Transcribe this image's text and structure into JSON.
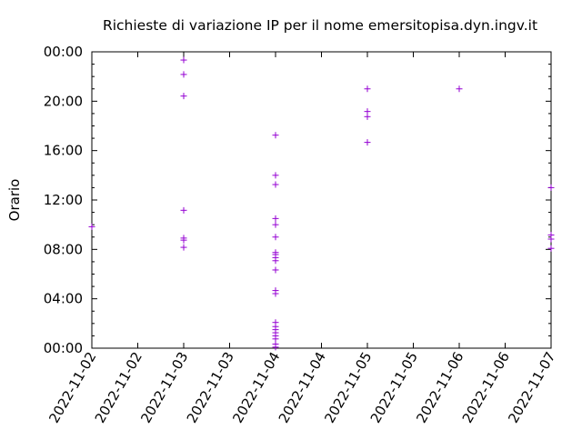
{
  "chart_data": {
    "type": "scatter",
    "title": "Richieste di variazione IP per il nome emersitopisa.dyn.ingv.it",
    "xlabel": "",
    "ylabel": "Orario",
    "x_axis": {
      "min": "2022-11-02 00:00",
      "max": "2022-11-07 00:00",
      "tick_labels": [
        "2022-11-02",
        "2022-11-02",
        "2022-11-03",
        "2022-11-03",
        "2022-11-04",
        "2022-11-04",
        "2022-11-05",
        "2022-11-05",
        "2022-11-06",
        "2022-11-06",
        "2022-11-07"
      ],
      "tick_positions_days": [
        0,
        0.5,
        1,
        1.5,
        2,
        2.5,
        3,
        3.5,
        4,
        4.5,
        5
      ]
    },
    "y_axis": {
      "min_hours": 0,
      "max_hours": 24,
      "tick_labels": [
        "00:00",
        "04:00",
        "08:00",
        "12:00",
        "16:00",
        "20:00",
        "00:00"
      ],
      "tick_hours": [
        0,
        4,
        8,
        12,
        16,
        20,
        24
      ]
    },
    "grid": false,
    "marker": "+",
    "color": "#9400d3",
    "points": [
      {
        "date": "2022-11-02",
        "time": "09:50"
      },
      {
        "date": "2022-11-03",
        "time": "23:20"
      },
      {
        "date": "2022-11-03",
        "time": "22:10"
      },
      {
        "date": "2022-11-03",
        "time": "20:25"
      },
      {
        "date": "2022-11-03",
        "time": "11:10"
      },
      {
        "date": "2022-11-03",
        "time": "08:55"
      },
      {
        "date": "2022-11-03",
        "time": "08:45"
      },
      {
        "date": "2022-11-03",
        "time": "08:10"
      },
      {
        "date": "2022-11-04",
        "time": "17:15"
      },
      {
        "date": "2022-11-04",
        "time": "14:00"
      },
      {
        "date": "2022-11-04",
        "time": "13:15"
      },
      {
        "date": "2022-11-04",
        "time": "10:30"
      },
      {
        "date": "2022-11-04",
        "time": "10:00"
      },
      {
        "date": "2022-11-04",
        "time": "09:00"
      },
      {
        "date": "2022-11-04",
        "time": "07:45"
      },
      {
        "date": "2022-11-04",
        "time": "07:35"
      },
      {
        "date": "2022-11-04",
        "time": "07:20"
      },
      {
        "date": "2022-11-04",
        "time": "07:05"
      },
      {
        "date": "2022-11-04",
        "time": "06:20"
      },
      {
        "date": "2022-11-04",
        "time": "04:40"
      },
      {
        "date": "2022-11-04",
        "time": "04:25"
      },
      {
        "date": "2022-11-04",
        "time": "02:05"
      },
      {
        "date": "2022-11-04",
        "time": "01:45"
      },
      {
        "date": "2022-11-04",
        "time": "01:30"
      },
      {
        "date": "2022-11-04",
        "time": "01:15"
      },
      {
        "date": "2022-11-04",
        "time": "01:00"
      },
      {
        "date": "2022-11-04",
        "time": "00:45"
      },
      {
        "date": "2022-11-04",
        "time": "00:20"
      },
      {
        "date": "2022-11-04",
        "time": "00:05"
      },
      {
        "date": "2022-11-05",
        "time": "21:00"
      },
      {
        "date": "2022-11-05",
        "time": "19:10"
      },
      {
        "date": "2022-11-05",
        "time": "18:45"
      },
      {
        "date": "2022-11-05",
        "time": "16:40"
      },
      {
        "date": "2022-11-06",
        "time": "21:00"
      },
      {
        "date": "2022-11-07",
        "time": "13:00"
      },
      {
        "date": "2022-11-07",
        "time": "09:10"
      },
      {
        "date": "2022-11-07",
        "time": "08:50"
      },
      {
        "date": "2022-11-07",
        "time": "08:05"
      }
    ]
  }
}
